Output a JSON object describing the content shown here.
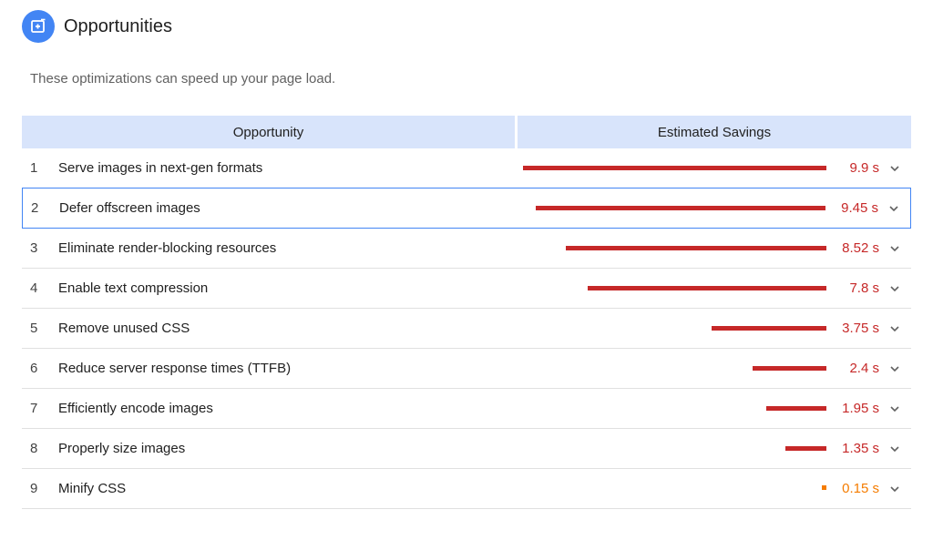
{
  "header": {
    "title": "Opportunities",
    "icon": "add-to-page-icon"
  },
  "subtitle": "These optimizations can speed up your page load.",
  "table": {
    "columns": {
      "opportunity": "Opportunity",
      "savings": "Estimated Savings"
    },
    "rows": [
      {
        "num": "1",
        "label": "Serve images in next-gen formats",
        "savings_text": "9.9 s",
        "savings_s": 9.9,
        "severity": "fail"
      },
      {
        "num": "2",
        "label": "Defer offscreen images",
        "savings_text": "9.45 s",
        "savings_s": 9.45,
        "severity": "fail",
        "selected": true
      },
      {
        "num": "3",
        "label": "Eliminate render-blocking resources",
        "savings_text": "8.52 s",
        "savings_s": 8.52,
        "severity": "fail"
      },
      {
        "num": "4",
        "label": "Enable text compression",
        "savings_text": "7.8 s",
        "savings_s": 7.8,
        "severity": "fail"
      },
      {
        "num": "5",
        "label": "Remove unused CSS",
        "savings_text": "3.75 s",
        "savings_s": 3.75,
        "severity": "fail"
      },
      {
        "num": "6",
        "label": "Reduce server response times (TTFB)",
        "savings_text": "2.4 s",
        "savings_s": 2.4,
        "severity": "fail"
      },
      {
        "num": "7",
        "label": "Efficiently encode images",
        "savings_text": "1.95 s",
        "savings_s": 1.95,
        "severity": "fail"
      },
      {
        "num": "8",
        "label": "Properly size images",
        "savings_text": "1.35 s",
        "savings_s": 1.35,
        "severity": "fail"
      },
      {
        "num": "9",
        "label": "Minify CSS",
        "savings_text": "0.15 s",
        "savings_s": 0.15,
        "severity": "average"
      }
    ]
  },
  "colors": {
    "fail": "#c62828",
    "average": "#f57c00",
    "header_bg": "#d8e4fb",
    "accent": "#4285f4"
  }
}
